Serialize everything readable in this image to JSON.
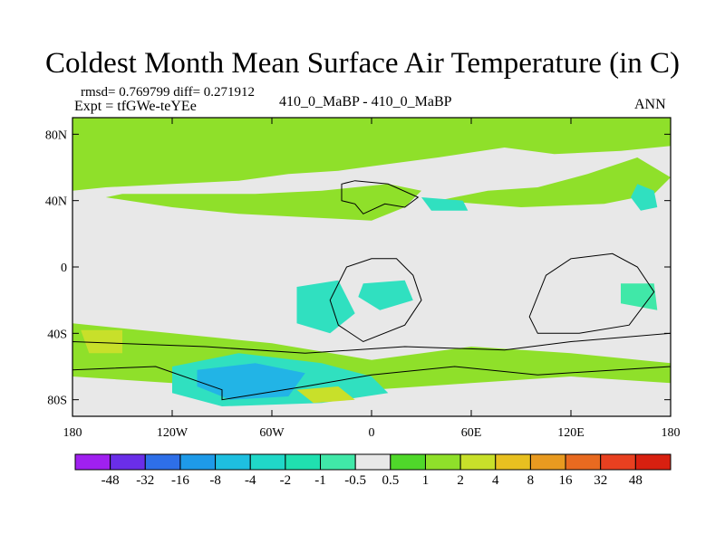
{
  "chart_data": {
    "type": "filled-contour-map",
    "title": "Coldest Month Mean Surface Air Temperature (in C)",
    "stats_text": "rmsd= 0.769799 diff= 0.271912",
    "expt_text": "Expt = tfGWe-teYEe",
    "center_label": "410_0_MaBP - 410_0_MaBP",
    "season": "ANN",
    "x_range": [
      -180,
      180
    ],
    "y_range": [
      -90,
      90
    ],
    "x_ticks": [
      {
        "value": -180,
        "label": "180"
      },
      {
        "value": -120,
        "label": "120W"
      },
      {
        "value": -60,
        "label": "60W"
      },
      {
        "value": 0,
        "label": "0"
      },
      {
        "value": 60,
        "label": "60E"
      },
      {
        "value": 120,
        "label": "120E"
      },
      {
        "value": 180,
        "label": "180"
      }
    ],
    "y_ticks": [
      {
        "value": 80,
        "label": "80N"
      },
      {
        "value": 40,
        "label": "40N"
      },
      {
        "value": 0,
        "label": "0"
      },
      {
        "value": -40,
        "label": "40S"
      },
      {
        "value": -80,
        "label": "80S"
      }
    ],
    "colorbar": {
      "labels": [
        "-48",
        "-32",
        "-16",
        "-8",
        "-4",
        "-2",
        "-1",
        "-0.5",
        "0.5",
        "1",
        "2",
        "4",
        "8",
        "16",
        "32",
        "48"
      ],
      "colors": [
        "#a020f0",
        "#6a2ee8",
        "#2e6fe8",
        "#1e9ae8",
        "#1ebfe0",
        "#20d8c8",
        "#20e0b0",
        "#40e8a8",
        "#e8e8e8",
        "#4fd82a",
        "#8fe02a",
        "#c8e02a",
        "#e8c020",
        "#e89a20",
        "#e86a20",
        "#e84020",
        "#d82010"
      ]
    },
    "regions": [
      {
        "level": "1",
        "color": "#8fe02a",
        "points": [
          [
            -180,
            90
          ],
          [
            180,
            90
          ],
          [
            180,
            73
          ],
          [
            150,
            70
          ],
          [
            110,
            68
          ],
          [
            80,
            72
          ],
          [
            40,
            66
          ],
          [
            10,
            62
          ],
          [
            -20,
            58
          ],
          [
            -50,
            56
          ],
          [
            -80,
            52
          ],
          [
            -120,
            50
          ],
          [
            -160,
            48
          ],
          [
            -180,
            46
          ]
        ]
      },
      {
        "level": "1",
        "color": "#8fe02a",
        "points": [
          [
            -160,
            42
          ],
          [
            -120,
            36
          ],
          [
            -80,
            32
          ],
          [
            -40,
            30
          ],
          [
            0,
            28
          ],
          [
            20,
            36
          ],
          [
            30,
            46
          ],
          [
            10,
            50
          ],
          [
            -30,
            46
          ],
          [
            -70,
            44
          ],
          [
            -110,
            44
          ],
          [
            -150,
            44
          ]
        ]
      },
      {
        "level": "1",
        "color": "#8fe02a",
        "points": [
          [
            40,
            40
          ],
          [
            90,
            36
          ],
          [
            140,
            38
          ],
          [
            170,
            44
          ],
          [
            180,
            54
          ],
          [
            160,
            66
          ],
          [
            130,
            56
          ],
          [
            100,
            48
          ],
          [
            70,
            46
          ]
        ]
      },
      {
        "level": "1",
        "color": "#8fe02a",
        "points": [
          [
            -180,
            -34
          ],
          [
            -120,
            -40
          ],
          [
            -60,
            -46
          ],
          [
            0,
            -56
          ],
          [
            60,
            -48
          ],
          [
            120,
            -52
          ],
          [
            180,
            -58
          ],
          [
            180,
            -70
          ],
          [
            120,
            -66
          ],
          [
            60,
            -70
          ],
          [
            0,
            -74
          ],
          [
            -60,
            -68
          ],
          [
            -120,
            -70
          ],
          [
            -180,
            -66
          ]
        ]
      },
      {
        "level": "-1",
        "color": "#30e0c0",
        "points": [
          [
            -120,
            -60
          ],
          [
            -80,
            -52
          ],
          [
            -30,
            -58
          ],
          [
            0,
            -66
          ],
          [
            10,
            -76
          ],
          [
            -30,
            -82
          ],
          [
            -90,
            -84
          ],
          [
            -120,
            -76
          ]
        ]
      },
      {
        "level": "-2",
        "color": "#22b4e6",
        "points": [
          [
            -105,
            -62
          ],
          [
            -70,
            -58
          ],
          [
            -40,
            -64
          ],
          [
            -50,
            -78
          ],
          [
            -85,
            -80
          ],
          [
            -105,
            -72
          ]
        ]
      },
      {
        "level": "-1",
        "color": "#30e0c0",
        "points": [
          [
            -45,
            -12
          ],
          [
            -20,
            -8
          ],
          [
            -10,
            -28
          ],
          [
            -25,
            -40
          ],
          [
            -45,
            -34
          ]
        ]
      },
      {
        "level": "-1",
        "color": "#30e0c0",
        "points": [
          [
            -5,
            -10
          ],
          [
            20,
            -8
          ],
          [
            25,
            -20
          ],
          [
            5,
            -26
          ],
          [
            -8,
            -18
          ]
        ]
      },
      {
        "level": "-1",
        "color": "#30e0c0",
        "points": [
          [
            160,
            50
          ],
          [
            170,
            46
          ],
          [
            172,
            36
          ],
          [
            162,
            34
          ],
          [
            156,
            42
          ]
        ]
      },
      {
        "level": "-1",
        "color": "#30e0c0",
        "points": [
          [
            30,
            42
          ],
          [
            55,
            40
          ],
          [
            58,
            34
          ],
          [
            36,
            34
          ]
        ]
      },
      {
        "level": "-0.5",
        "color": "#40e8a8",
        "points": [
          [
            150,
            -10
          ],
          [
            170,
            -10
          ],
          [
            172,
            -26
          ],
          [
            150,
            -22
          ]
        ]
      },
      {
        "level": "4",
        "color": "#c8e02a",
        "points": [
          [
            -175,
            -38
          ],
          [
            -150,
            -38
          ],
          [
            -150,
            -52
          ],
          [
            -170,
            -52
          ]
        ]
      },
      {
        "level": "4",
        "color": "#c8e02a",
        "points": [
          [
            -45,
            -74
          ],
          [
            -20,
            -72
          ],
          [
            -10,
            -80
          ],
          [
            -35,
            -82
          ]
        ]
      }
    ],
    "land_outlines": [
      [
        [
          -18,
          50
        ],
        [
          -10,
          52
        ],
        [
          10,
          50
        ],
        [
          28,
          42
        ],
        [
          20,
          36
        ],
        [
          8,
          38
        ],
        [
          -5,
          32
        ],
        [
          -10,
          38
        ],
        [
          -18,
          40
        ]
      ],
      [
        [
          -25,
          -20
        ],
        [
          -15,
          0
        ],
        [
          0,
          5
        ],
        [
          15,
          5
        ],
        [
          25,
          -5
        ],
        [
          30,
          -20
        ],
        [
          20,
          -35
        ],
        [
          -5,
          -45
        ],
        [
          -20,
          -35
        ]
      ],
      [
        [
          95,
          -30
        ],
        [
          105,
          -5
        ],
        [
          120,
          5
        ],
        [
          145,
          8
        ],
        [
          160,
          0
        ],
        [
          170,
          -15
        ],
        [
          155,
          -35
        ],
        [
          125,
          -40
        ],
        [
          100,
          -40
        ]
      ],
      [
        [
          -180,
          -45
        ],
        [
          -100,
          -48
        ],
        [
          -40,
          -52
        ],
        [
          20,
          -48
        ],
        [
          80,
          -50
        ],
        [
          120,
          -45
        ],
        [
          180,
          -40
        ],
        [
          180,
          -60
        ],
        [
          100,
          -65
        ],
        [
          50,
          -60
        ],
        [
          0,
          -65
        ],
        [
          -40,
          -72
        ],
        [
          -90,
          -80
        ],
        [
          -90,
          -74
        ],
        [
          -130,
          -60
        ],
        [
          -180,
          -62
        ]
      ]
    ]
  }
}
